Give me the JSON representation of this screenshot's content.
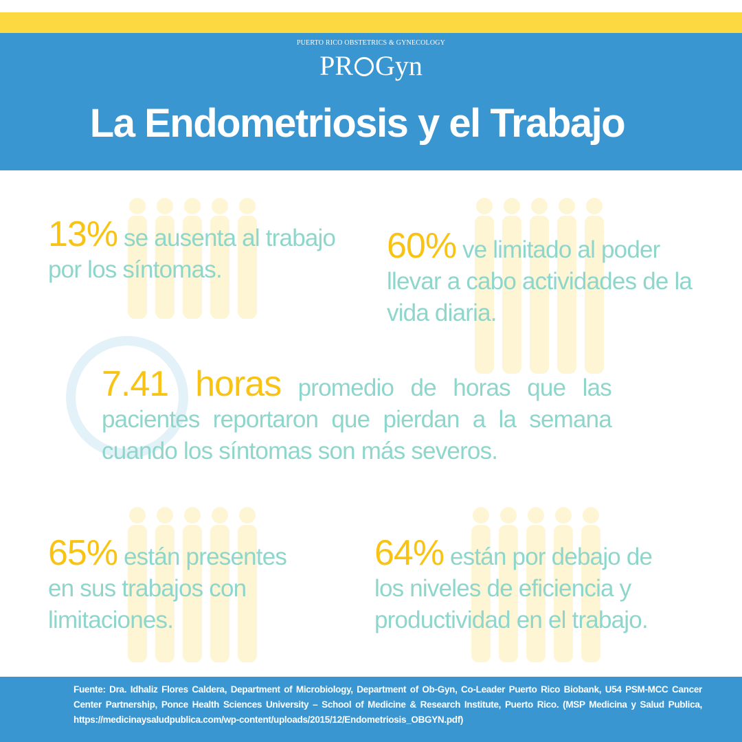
{
  "header": {
    "subtitle": "PUERTO RICO OBSTETRICS & GYNECOLOGY",
    "logo_left": "PR",
    "logo_right": "Gyn",
    "title": "La Endometriosis y el Trabajo"
  },
  "stats": [
    {
      "highlight": "13%",
      "text": "se ausenta al trabajo por los síntomas."
    },
    {
      "highlight": "60%",
      "text": "ve limitado al poder llevar a cabo actividades de la vida diaria."
    },
    {
      "highlight": "7.41 horas",
      "text": "promedio de horas que las pacientes reportaron que pierdan a la semana cuando los síntomas son más severos."
    },
    {
      "highlight": "65%",
      "text": "están presentes en sus trabajos con limitaciones."
    },
    {
      "highlight": "64%",
      "text": "están por debajo de los niveles de eficiencia y productividad en el trabajo."
    }
  ],
  "footer": {
    "source": "Fuente:  Dra. Idhaliz Flores Caldera, Department of Microbiology, Department of Ob-Gyn, Co-Leader Puerto Rico Biobank, U54 PSM-MCC Cancer Center Partnership, Ponce Health Sciences University – School of Medicine & Research Institute, Puerto Rico.  (MSP Medicina y Salud Publica, https://medicinaysaludpublica.com/wp-content/uploads/2015/12/Endometriosis_OBGYN.pdf)"
  }
}
